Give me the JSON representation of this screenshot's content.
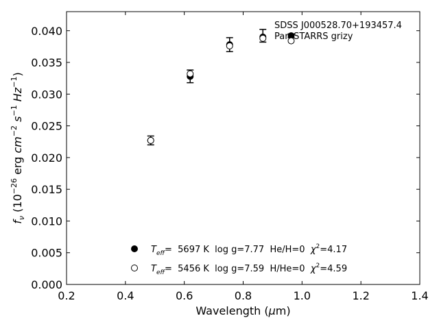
{
  "chart_data": {
    "type": "scatter",
    "xlabel": "Wavelength (μm)",
    "ylabel": "f_ν (10^-26 erg cm^-2 s^-1 Hz^-1)",
    "xlim": [
      0.2,
      1.4
    ],
    "ylim": [
      0.0,
      0.043
    ],
    "xticks": [
      "0.2",
      "0.4",
      "0.6",
      "0.8",
      "1.0",
      "1.2",
      "1.4"
    ],
    "yticks": [
      "0.000",
      "0.005",
      "0.010",
      "0.015",
      "0.020",
      "0.025",
      "0.030",
      "0.035",
      "0.040"
    ],
    "annotations": [
      "SDSS J000528.70+193457.4",
      "Pan-STARRS grizy"
    ],
    "observed": {
      "x": [
        0.486,
        0.62,
        0.754,
        0.867,
        0.963
      ],
      "y": [
        0.0227,
        0.0328,
        0.0378,
        0.0392,
        0.0392
      ],
      "yerr": [
        0.0007,
        0.001,
        0.0011,
        0.001,
        0.0003
      ]
    },
    "series": [
      {
        "name": "T_eff= 5697 K  log g=7.77  He/H=0  χ²=4.17",
        "marker": "filled-circle",
        "x": [
          0.486,
          0.62,
          0.754,
          0.867,
          0.963
        ],
        "y": [
          0.0227,
          0.0328,
          0.0378,
          0.039,
          0.0392
        ]
      },
      {
        "name": "T_eff= 5456 K  log g=7.59  H/He=0  χ²=4.59",
        "marker": "open-circle",
        "x": [
          0.486,
          0.62,
          0.754,
          0.867,
          0.963
        ],
        "y": [
          0.0227,
          0.0332,
          0.0376,
          0.0388,
          0.0384
        ]
      }
    ],
    "legend": {
      "position": "lower-center",
      "labels": [
        {
          "prefix": "T",
          "sub": "eff",
          "mid": "=  5697 K  log g=7.77  He/H=0  ",
          "chi": "χ",
          "sup": "2",
          "tail": "=4.17"
        },
        {
          "prefix": "T",
          "sub": "eff",
          "mid": "=  5456 K  log g=7.59  H/He=0  ",
          "chi": "χ",
          "sup": "2",
          "tail": "=4.59"
        }
      ]
    }
  }
}
